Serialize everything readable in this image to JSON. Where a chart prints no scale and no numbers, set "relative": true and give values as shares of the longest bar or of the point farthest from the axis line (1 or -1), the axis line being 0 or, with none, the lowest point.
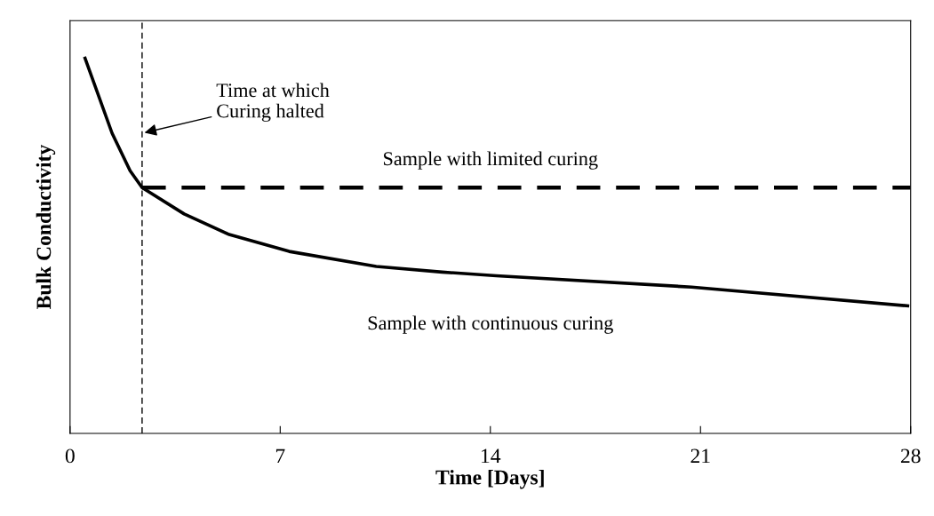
{
  "chart_data": {
    "type": "line",
    "relative": true,
    "xlabel": "Time [Days]",
    "ylabel": "Bulk Conductivity",
    "xlim": [
      0,
      28
    ],
    "xticks": [
      0,
      7,
      14,
      21,
      28
    ],
    "tick_labels": "x",
    "grid": false,
    "legend": false,
    "marker": "none",
    "series": [
      {
        "name": "Sample with limited curing",
        "color": "#000000",
        "line_style": "dashed",
        "x": [
          2.4,
          28
        ],
        "values": [
          0.655,
          0.655
        ]
      },
      {
        "name": "Sample with continuous curing",
        "color": "#000000",
        "line_style": "solid",
        "x": [
          0.5,
          1.4,
          2.0,
          2.4,
          3.8,
          5.3,
          7.3,
          10.2,
          12.4,
          14.2,
          20.7,
          27.9
        ],
        "values": [
          1,
          0.8,
          0.7,
          0.655,
          0.585,
          0.53,
          0.485,
          0.445,
          0.43,
          0.42,
          0.39,
          0.34
        ]
      }
    ],
    "ref_lines": [
      {
        "axis": "x",
        "value": 2.4,
        "color": "#000000",
        "line_style": "dashed"
      }
    ],
    "annotations": [
      {
        "text": "Time at which\nCuring halted",
        "x": 2.4,
        "y": 0.8
      }
    ]
  }
}
